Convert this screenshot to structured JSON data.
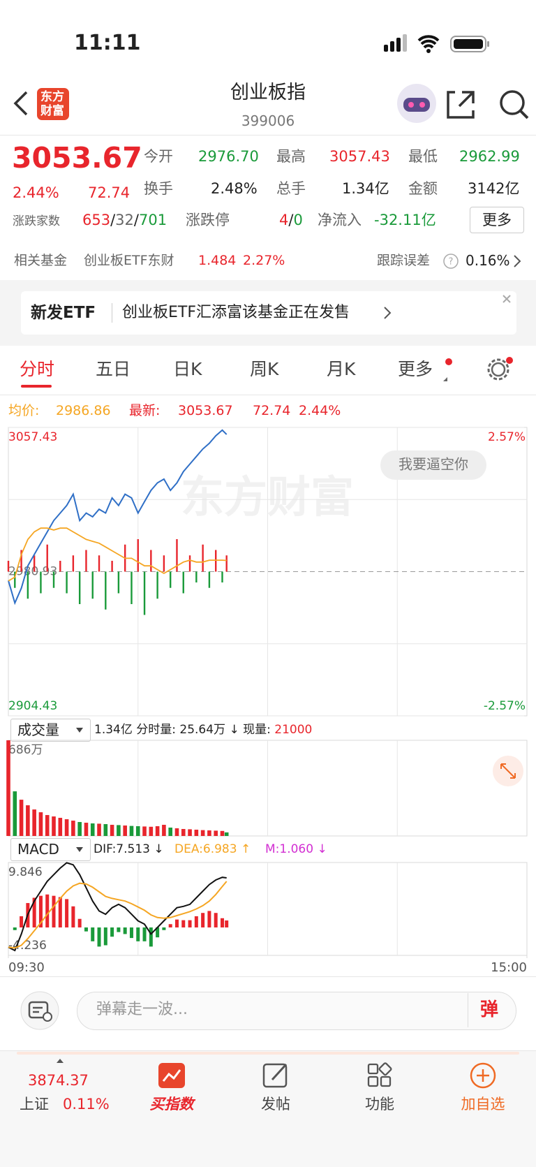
{
  "status": {
    "time": "11:11"
  },
  "header": {
    "logo": "东方财富",
    "title": "创业板指",
    "code": "399006"
  },
  "quote": {
    "price": "3053.67",
    "change_pct": "2.44%",
    "change": "72.74",
    "fields": [
      {
        "label": "今开",
        "value": "2976.70"
      },
      {
        "label": "最高",
        "value": "3057.43"
      },
      {
        "label": "最低",
        "value": "2962.99"
      },
      {
        "label": "换手",
        "value": "2.48%"
      },
      {
        "label": "总手",
        "value": "1.34亿"
      },
      {
        "label": "金额",
        "value": "3142亿"
      }
    ],
    "breadth": {
      "label": "涨跌家数",
      "up": "653",
      "sep": "/",
      "flat": "32",
      "down": "701"
    },
    "limit": {
      "label": "涨跌停",
      "up": "4",
      "down": "0"
    },
    "inflow": {
      "label": "净流入",
      "value": "-32.11亿"
    },
    "more": "更多"
  },
  "fund": {
    "label": "相关基金",
    "name": "创业板ETF东财",
    "price": "1.484",
    "pct": "2.27%",
    "tracking_label": "跟踪误差",
    "tracking_value": "0.16%"
  },
  "banner": {
    "tag": "新发ETF",
    "text": "创业板ETF汇添富该基金正在发售"
  },
  "tabs": [
    "分时",
    "五日",
    "日K",
    "周K",
    "月K",
    "更多"
  ],
  "chart_info": {
    "avg_label": "均价:",
    "avg": "2986.86",
    "latest_label": "最新:",
    "latest": "3053.67",
    "change": "72.74",
    "pct": "2.44%"
  },
  "chart_data": [
    {
      "type": "line",
      "watermark": "东方财富",
      "button": "我要逼空你",
      "x": [
        0,
        3,
        6,
        9,
        12,
        15,
        18,
        21,
        24,
        27,
        30,
        33,
        36,
        39,
        42,
        45,
        48,
        51,
        54,
        57,
        60,
        63,
        66,
        69,
        72,
        75,
        78,
        81,
        84,
        87,
        90,
        93,
        96,
        99,
        101
      ],
      "xlim": [
        0,
        240
      ],
      "minor_xticks": [
        60,
        120,
        180
      ],
      "ylim": [
        2904.43,
        3057.43
      ],
      "yticks": [
        2904.43,
        2980.93,
        3057.43
      ],
      "minor_yticks": [
        2942.68,
        3019.18
      ],
      "y2lim": [
        -2.57,
        2.57
      ],
      "y2ticks": [
        {
          "value": 2.57,
          "label": "2.57%"
        },
        {
          "value": -2.57,
          "label": "-2.57%"
        }
      ],
      "series": [
        {
          "color": "#2f6fc6",
          "values": [
            2976.2,
            2964.3,
            2972.2,
            2984,
            2990,
            2996,
            3002,
            3008,
            3012,
            3016,
            3022,
            3008,
            3012,
            3010,
            3014,
            3012,
            3020,
            3016,
            3022,
            3020,
            3012,
            3018,
            3024,
            3028,
            3030,
            3024,
            3028,
            3034,
            3038,
            3042,
            3046,
            3049,
            3053,
            3056,
            3053.67
          ]
        },
        {
          "color": "#f5a623",
          "values": [
            2976,
            2978,
            2990,
            2998,
            3002,
            3004,
            3004,
            3003,
            3004,
            3004,
            3002,
            3000,
            2998,
            2997,
            2996,
            2994,
            2992,
            2990,
            2988,
            2988,
            2986,
            2984,
            2984,
            2982,
            2980,
            2982,
            2984,
            2986,
            2987,
            2986,
            2986,
            2987,
            2987,
            2987,
            2986.86
          ]
        }
      ],
      "flow": {
        "up_color": "#e8252c",
        "down_color": "#1a9a3a",
        "values": [
          2,
          -3,
          4,
          -5,
          3,
          -4,
          5,
          -3,
          2,
          -4,
          3,
          -6,
          4,
          -5,
          3,
          -7,
          2,
          -4,
          5,
          -6,
          6,
          -8,
          4,
          -5,
          3,
          -3,
          6,
          -4,
          3,
          -2,
          5,
          -3,
          4,
          -2,
          3
        ]
      }
    },
    {
      "type": "bar",
      "selector": "成交量",
      "info": "1.34亿 分时量: 25.64万 ↓ 现量:",
      "current": "21000",
      "ylim": [
        0,
        686
      ],
      "yticks": [
        {
          "value": 686,
          "label": "686万"
        }
      ],
      "up_color": "#e8252c",
      "down_color": "#1a9a3a",
      "values": [
        686,
        320,
        260,
        220,
        190,
        170,
        150,
        140,
        130,
        120,
        110,
        100,
        95,
        90,
        88,
        85,
        80,
        78,
        75,
        72,
        70,
        68,
        66,
        70,
        80,
        60,
        55,
        50,
        48,
        45,
        42,
        40,
        38,
        36,
        25.64
      ]
    },
    {
      "type": "macd",
      "selector": "MACD",
      "dif_label": "DIF:7.513 ↓",
      "dea_label": "DEA:6.983 ↑",
      "m_label": "M:1.060 ↓",
      "ylim": [
        -4.236,
        9.846
      ],
      "yticks": [
        -4.236,
        9.846
      ],
      "xticks": [
        {
          "value": 0,
          "label": "09:30"
        },
        {
          "value": 240,
          "label": "15:00"
        }
      ],
      "series": [
        {
          "color": "#111111",
          "values": [
            -3,
            -3.5,
            -1,
            2,
            4,
            5.5,
            7,
            8,
            9,
            9.8,
            9.5,
            8,
            6,
            4,
            2.5,
            2,
            3,
            3.5,
            3,
            2,
            1,
            0.5,
            -1,
            0,
            1,
            2,
            3,
            3.2,
            3.5,
            4.5,
            5.5,
            6.5,
            7.2,
            7.6,
            7.513
          ]
        },
        {
          "color": "#f5a623",
          "values": [
            -3,
            -3.1,
            -2.7,
            -1.7,
            -0.5,
            0.7,
            2,
            3.2,
            4.4,
            5.5,
            6.3,
            6.7,
            6.6,
            6.1,
            5.4,
            4.7,
            4.4,
            4.2,
            4,
            3.6,
            3.1,
            2.6,
            1.9,
            1.5,
            1.4,
            1.5,
            1.8,
            2.1,
            2.4,
            2.8,
            3.3,
            4,
            5,
            6.2,
            6.983
          ]
        }
      ],
      "hist": {
        "up_color": "#e8252c",
        "down_color": "#1a9a3a",
        "values": [
          0,
          -0.4,
          1.7,
          3.7,
          4.5,
          4.8,
          5,
          4.8,
          4.6,
          4.3,
          3.2,
          1.3,
          -0.6,
          -2.1,
          -2.9,
          -2.7,
          -1.4,
          -0.7,
          -1,
          -1.6,
          -2.1,
          -2.1,
          -2.9,
          -1.5,
          -0.4,
          0.5,
          1.2,
          1.1,
          1.1,
          1.7,
          2.2,
          2.5,
          2.2,
          1.4,
          1.06
        ]
      }
    }
  ],
  "comment": {
    "placeholder": "弹幕走一波...",
    "button": "弹"
  },
  "nav": {
    "index_value": "3874.37",
    "index_name": "上证",
    "index_pct": "0.11%",
    "items": [
      "买指数",
      "发帖",
      "功能",
      "加自选"
    ]
  }
}
